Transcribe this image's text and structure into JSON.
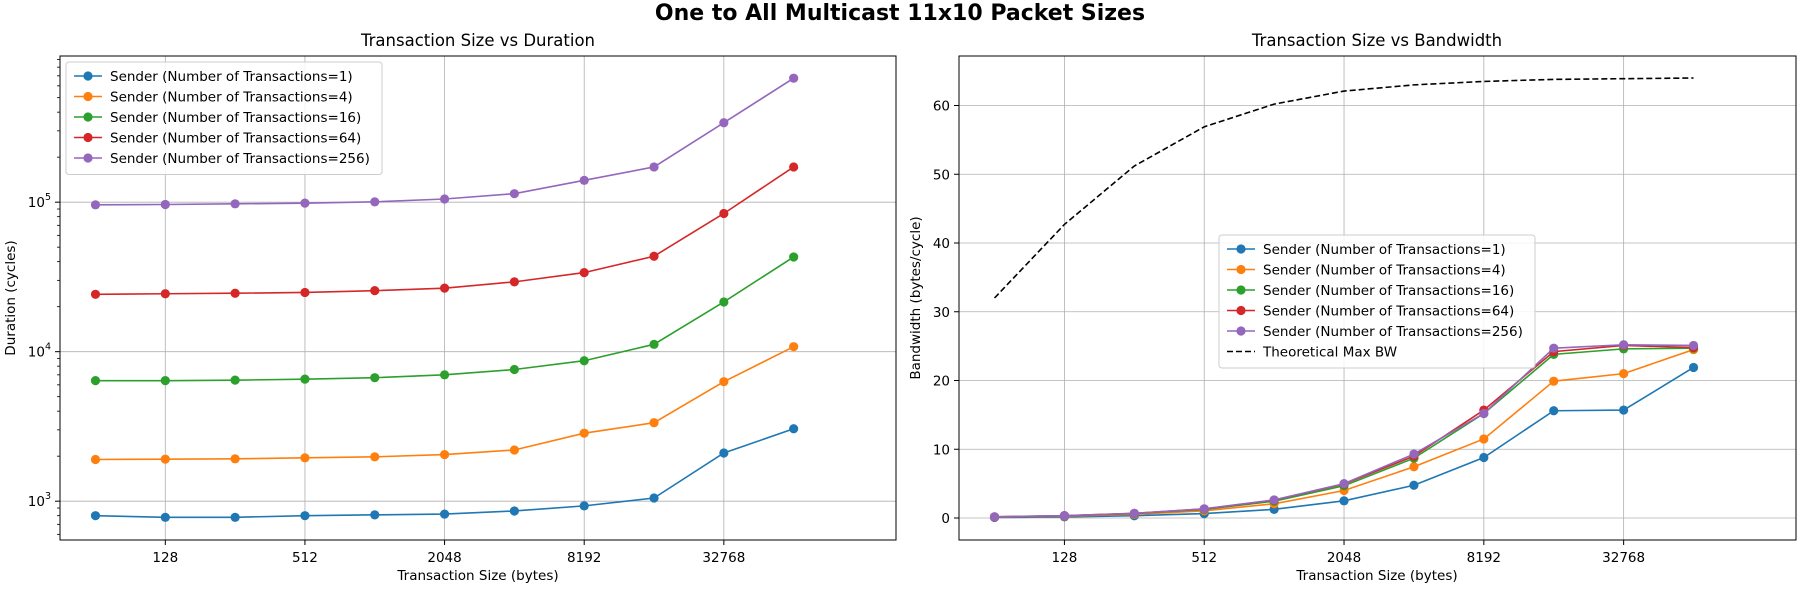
{
  "figure": {
    "title": "One to All Multicast 11x10 Packet Sizes"
  },
  "chart_data": [
    {
      "type": "line",
      "title": "Transaction Size vs Duration",
      "xlabel": "Transaction Size (bytes)",
      "ylabel": "Duration (cycles)",
      "xscale": "log2",
      "yscale": "log10",
      "xlim": [
        45,
        181020
      ],
      "ylim": [
        550,
        950000
      ],
      "x": [
        64,
        128,
        256,
        512,
        1024,
        2048,
        4096,
        8192,
        16384,
        32768,
        65536
      ],
      "xticks": [
        128,
        512,
        2048,
        8192,
        32768
      ],
      "xtick_labels": [
        "128",
        "512",
        "2048",
        "8192",
        "32768"
      ],
      "yticks": [
        1000,
        10000,
        100000
      ],
      "ytick_labels": [
        {
          "base": "10",
          "exp": "3"
        },
        {
          "base": "10",
          "exp": "4"
        },
        {
          "base": "10",
          "exp": "5"
        }
      ],
      "grid": true,
      "legend_position": "upper-left",
      "series": [
        {
          "name": "Sender (Number of Transactions=1)",
          "color": "#1f77b4",
          "values": [
            800,
            780,
            780,
            800,
            810,
            820,
            860,
            930,
            1050,
            2100,
            3050
          ]
        },
        {
          "name": "Sender (Number of Transactions=4)",
          "color": "#ff7f0e",
          "values": [
            1900,
            1910,
            1920,
            1950,
            1980,
            2050,
            2200,
            2850,
            3350,
            6300,
            10800
          ]
        },
        {
          "name": "Sender (Number of Transactions=16)",
          "color": "#2ca02c",
          "values": [
            6400,
            6400,
            6450,
            6550,
            6700,
            7000,
            7600,
            8700,
            11200,
            21500,
            43000
          ]
        },
        {
          "name": "Sender (Number of Transactions=64)",
          "color": "#d62728",
          "values": [
            24200,
            24400,
            24600,
            24900,
            25600,
            26600,
            29300,
            33800,
            43500,
            84000,
            172000
          ]
        },
        {
          "name": "Sender (Number of Transactions=256)",
          "color": "#9467bd",
          "values": [
            96000,
            96500,
            97500,
            98500,
            100500,
            105000,
            114000,
            140000,
            172000,
            340000,
            675000
          ]
        }
      ]
    },
    {
      "type": "line",
      "title": "Transaction Size vs Bandwidth",
      "xlabel": "Transaction Size (bytes)",
      "ylabel": "Bandwidth (bytes/cycle)",
      "xscale": "log2",
      "yscale": "linear",
      "xlim": [
        45,
        181020
      ],
      "ylim": [
        -3.2,
        67.2
      ],
      "x": [
        64,
        128,
        256,
        512,
        1024,
        2048,
        4096,
        8192,
        16384,
        32768,
        65536
      ],
      "xticks": [
        128,
        512,
        2048,
        8192,
        32768
      ],
      "xtick_labels": [
        "128",
        "512",
        "2048",
        "8192",
        "32768"
      ],
      "yticks": [
        0,
        10,
        20,
        30,
        40,
        50,
        60
      ],
      "ytick_labels": [
        "0",
        "10",
        "20",
        "30",
        "40",
        "50",
        "60"
      ],
      "grid": true,
      "legend_position": "center",
      "series": [
        {
          "name": "Sender (Number of Transactions=1)",
          "color": "#1f77b4",
          "values": [
            0.08,
            0.16,
            0.33,
            0.64,
            1.26,
            2.5,
            4.76,
            8.8,
            15.6,
            15.7,
            21.9
          ]
        },
        {
          "name": "Sender (Number of Transactions=4)",
          "color": "#ff7f0e",
          "values": [
            0.13,
            0.27,
            0.53,
            1.05,
            2.07,
            4.0,
            7.45,
            11.5,
            19.9,
            21.0,
            24.5
          ]
        },
        {
          "name": "Sender (Number of Transactions=16)",
          "color": "#2ca02c",
          "values": [
            0.16,
            0.32,
            0.64,
            1.25,
            2.45,
            4.7,
            8.7,
            15.2,
            23.8,
            24.6,
            24.7
          ]
        },
        {
          "name": "Sender (Number of Transactions=64)",
          "color": "#d62728",
          "values": [
            0.17,
            0.34,
            0.67,
            1.32,
            2.6,
            4.95,
            9.0,
            15.7,
            24.2,
            25.1,
            24.8
          ]
        },
        {
          "name": "Sender (Number of Transactions=256)",
          "color": "#9467bd",
          "values": [
            0.17,
            0.34,
            0.68,
            1.34,
            2.63,
            5.0,
            9.3,
            15.2,
            24.7,
            25.2,
            25.1
          ]
        },
        {
          "name": "Theoretical Max BW",
          "color": "#000000",
          "dashed": true,
          "markers": false,
          "values": [
            32.0,
            42.7,
            51.2,
            56.9,
            60.2,
            62.1,
            63.0,
            63.5,
            63.8,
            63.9,
            64.0
          ]
        }
      ]
    }
  ]
}
